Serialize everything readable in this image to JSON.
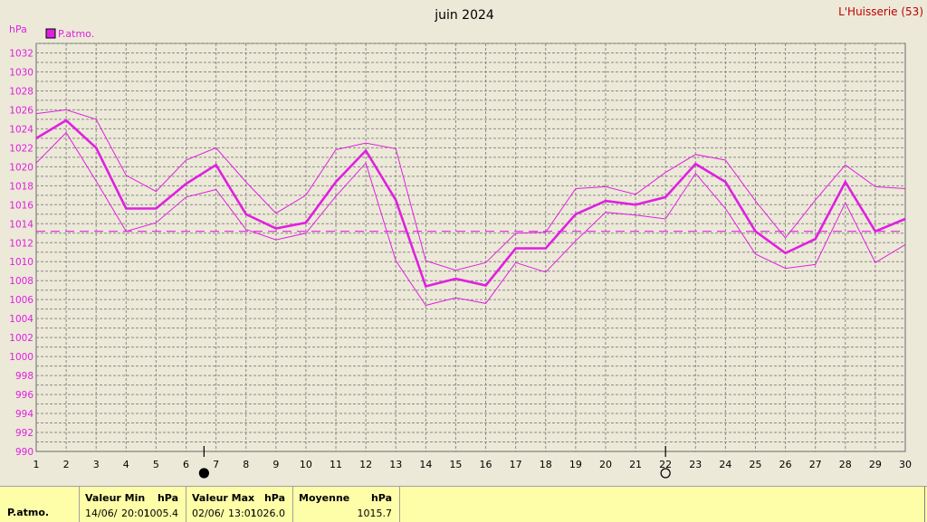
{
  "header": {
    "title": "juin 2024",
    "station": "L'Huisserie (53)"
  },
  "colors": {
    "series": "#e020e0",
    "mean_line": "#e020e0",
    "grid": "#8a8a8a",
    "background": "#ece9d8",
    "footer_bg": "#fefea9"
  },
  "chart_data": {
    "type": "line",
    "title": "juin 2024",
    "ylabel": "hPa",
    "xlabel": "",
    "legend": {
      "label": "P.atmo.",
      "placement": "top-left"
    },
    "grid": true,
    "xlim": [
      1,
      30
    ],
    "ylim": [
      990,
      1033
    ],
    "x": [
      1,
      2,
      3,
      4,
      5,
      6,
      7,
      8,
      9,
      10,
      11,
      12,
      13,
      14,
      15,
      16,
      17,
      18,
      19,
      20,
      21,
      22,
      23,
      24,
      25,
      26,
      27,
      28,
      29,
      30
    ],
    "x_ticks": [
      "1",
      "2",
      "3",
      "4",
      "5",
      "6",
      "7",
      "8",
      "9",
      "10",
      "11",
      "12",
      "13",
      "14",
      "15",
      "16",
      "17",
      "18",
      "19",
      "20",
      "21",
      "22",
      "23",
      "24",
      "25",
      "26",
      "27",
      "28",
      "29",
      "30"
    ],
    "y_ticks": [
      "990",
      "992",
      "994",
      "996",
      "998",
      "1000",
      "1002",
      "1004",
      "1006",
      "1008",
      "1010",
      "1012",
      "1014",
      "1016",
      "1018",
      "1020",
      "1022",
      "1024",
      "1026",
      "1028",
      "1030",
      "1032"
    ],
    "series": [
      {
        "name": "P.atmo.",
        "role": "daily-mean",
        "values": [
          1023.0,
          1024.9,
          1022.0,
          1015.6,
          1015.6,
          1018.2,
          1020.2,
          1015.0,
          1013.5,
          1014.1,
          1018.4,
          1021.7,
          1016.5,
          1007.4,
          1008.2,
          1007.5,
          1011.4,
          1011.4,
          1015.0,
          1016.4,
          1016.0,
          1016.8,
          1020.3,
          1018.4,
          1013.2,
          1010.9,
          1012.4,
          1018.4,
          1013.2,
          1014.5
        ]
      },
      {
        "role": "daily-max",
        "values": [
          1025.6,
          1026.0,
          1025.0,
          1019.1,
          1017.4,
          1020.7,
          1022.0,
          1018.4,
          1015.1,
          1017.0,
          1021.8,
          1022.5,
          1021.9,
          1010.1,
          1009.1,
          1009.9,
          1013.0,
          1013.1,
          1017.7,
          1017.9,
          1017.1,
          1019.4,
          1021.3,
          1020.7,
          1016.4,
          1012.5,
          1016.5,
          1020.2,
          1017.9,
          1017.7
        ]
      },
      {
        "role": "daily-min",
        "values": [
          1020.4,
          1023.6,
          1018.5,
          1013.2,
          1014.1,
          1016.8,
          1017.6,
          1013.4,
          1012.3,
          1013.0,
          1016.9,
          1020.4,
          1010.1,
          1005.4,
          1006.2,
          1005.6,
          1009.9,
          1008.9,
          1012.2,
          1015.2,
          1014.9,
          1014.5,
          1019.3,
          1015.6,
          1010.8,
          1009.3,
          1009.7,
          1016.2,
          1009.9,
          1011.8
        ]
      }
    ],
    "mean_line": 1013.2,
    "moon_phases": [
      {
        "day": 6.6,
        "phase": "new-moon"
      },
      {
        "day": 22.0,
        "phase": "full-moon"
      }
    ]
  },
  "footer": {
    "row_label": "P.atmo.",
    "min": {
      "title": "Valeur Min",
      "unit": "hPa",
      "date": "14/06/",
      "time": "20:01",
      "value": "1005.4"
    },
    "max": {
      "title": "Valeur Max",
      "unit": "hPa",
      "date": "02/06/",
      "time": "13:01",
      "value": "1026.0"
    },
    "avg": {
      "title": "Moyenne",
      "unit": "hPa",
      "value": "1015.7"
    }
  }
}
